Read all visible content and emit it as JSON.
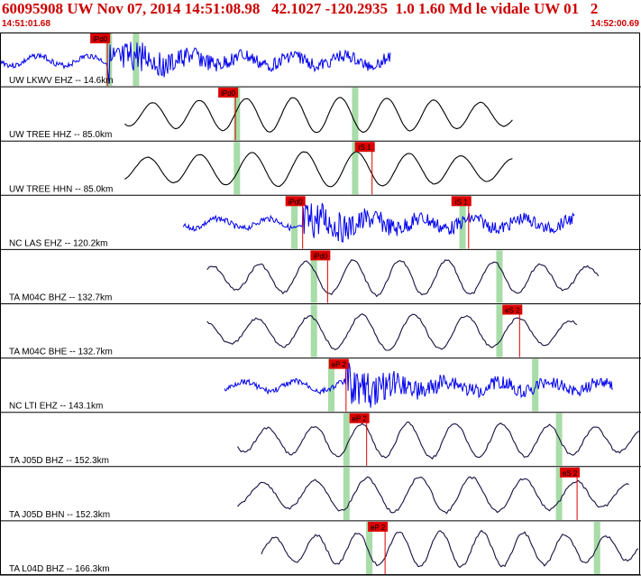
{
  "header": {
    "title": "60095908 UW Nov 07, 2014 14:51:08.98   42.1027 -120.2935  1.0 1.60 Md le vidale UW 01   2",
    "start_time": "14:51:01.68",
    "end_time": "14:52:00.69"
  },
  "colors": {
    "pick_marker": "#dd0000",
    "theoretical_band": "#a8dca8",
    "frame": "#000000",
    "trace_blue": "#0000ee",
    "trace_black": "#000000",
    "trace_dark": "#1a1040"
  },
  "chart_data": {
    "type": "line",
    "x_units": "seconds after 14:51:01.68",
    "xlim": [
      0,
      59.01
    ],
    "traces": [
      {
        "label": "UW LKWV EHZ -- 14.6km",
        "color": "blue",
        "style": "noisy",
        "x_start": 0,
        "x_end": 36.0,
        "picks": [
          {
            "label": "iPd0",
            "t": 9.9
          }
        ],
        "bands": [
          10.0,
          12.5
        ]
      },
      {
        "label": "UW TREE HHZ -- 85.0km",
        "color": "black",
        "style": "smooth",
        "x_start": 11.5,
        "x_end": 47.3,
        "picks": [
          {
            "label": "iPd0",
            "t": 21.7
          }
        ],
        "bands": [
          21.8,
          32.7
        ]
      },
      {
        "label": "UW TREE HHN -- 85.0km",
        "color": "black",
        "style": "smooth",
        "x_start": 11.5,
        "x_end": 47.3,
        "picks": [
          {
            "label": "iS 1",
            "t": 34.3
          }
        ],
        "bands": [
          21.8,
          32.7
        ]
      },
      {
        "label": "NC LAS EHZ -- 120.2km",
        "color": "blue",
        "style": "noisy",
        "x_start": 16.9,
        "x_end": 53.0,
        "picks": [
          {
            "label": "iPd0",
            "t": 27.9
          },
          {
            "label": "iS 1",
            "t": 43.2
          }
        ],
        "bands": [
          27.1,
          42.6
        ]
      },
      {
        "label": "TA M04C BHZ -- 132.7km",
        "color": "dark",
        "style": "smooth",
        "x_start": 19.1,
        "x_end": 55.2,
        "picks": [
          {
            "label": "iPd0",
            "t": 30.2
          }
        ],
        "bands": [
          28.9,
          46.0
        ]
      },
      {
        "label": "TA M04C BHE -- 132.7km",
        "color": "dark",
        "style": "smooth",
        "x_start": 19.1,
        "x_end": 53.2,
        "picks": [
          {
            "label": "eS 2",
            "t": 47.9
          }
        ],
        "bands": [
          28.9,
          46.0
        ]
      },
      {
        "label": "NC LTI EHZ -- 143.1km",
        "color": "blue",
        "style": "noisy",
        "x_start": 20.7,
        "x_end": 56.5,
        "picks": [
          {
            "label": "eP 2",
            "t": 31.9
          }
        ],
        "bands": [
          30.5,
          49.3
        ]
      },
      {
        "label": "TA J05D BHZ -- 152.3km",
        "color": "dark",
        "style": "smooth",
        "x_start": 21.9,
        "x_end": 59.0,
        "picks": [
          {
            "label": "eP 2",
            "t": 33.8
          }
        ],
        "bands": [
          31.9,
          51.5
        ]
      },
      {
        "label": "TA J05D BHN -- 152.3km",
        "color": "dark",
        "style": "smooth",
        "x_start": 21.9,
        "x_end": 58.0,
        "picks": [
          {
            "label": "eS 2",
            "t": 53.2
          }
        ],
        "bands": [
          31.9,
          51.5
        ]
      },
      {
        "label": "TA L04D BHZ -- 166.3km",
        "color": "dark",
        "style": "smooth",
        "x_start": 24.1,
        "x_end": 59.0,
        "picks": [
          {
            "label": "eP 2",
            "t": 35.5
          }
        ],
        "bands": [
          34.0,
          55.0
        ]
      }
    ]
  }
}
